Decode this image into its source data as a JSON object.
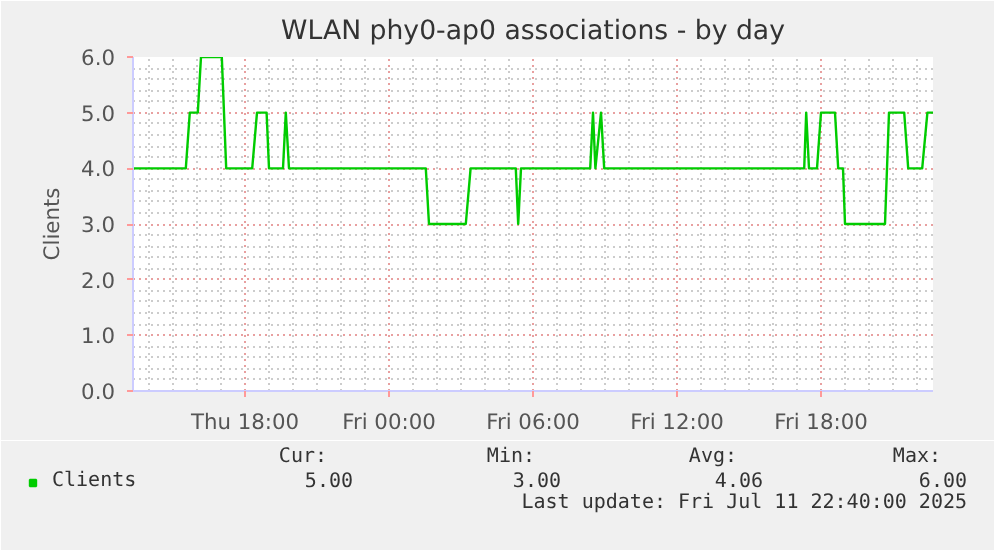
{
  "chart_data": {
    "type": "line",
    "title": "WLAN phy0-ap0 associations - by day",
    "ylabel": "Clients",
    "x": [
      "2025-07-10T13:20",
      "2025-07-10T15:32",
      "2025-07-10T15:42",
      "2025-07-10T16:02",
      "2025-07-10T16:10",
      "2025-07-10T17:02",
      "2025-07-10T17:13",
      "2025-07-10T18:18",
      "2025-07-10T18:30",
      "2025-07-10T18:54",
      "2025-07-10T19:00",
      "2025-07-10T19:35",
      "2025-07-10T19:42",
      "2025-07-10T19:50",
      "2025-07-11T01:32",
      "2025-07-11T01:40",
      "2025-07-11T03:12",
      "2025-07-11T03:24",
      "2025-07-11T05:17",
      "2025-07-11T05:23",
      "2025-07-11T05:30",
      "2025-07-11T08:23",
      "2025-07-11T08:30",
      "2025-07-11T08:36",
      "2025-07-11T08:50",
      "2025-07-11T08:58",
      "2025-07-11T17:18",
      "2025-07-11T17:23",
      "2025-07-11T17:30",
      "2025-07-11T17:50",
      "2025-07-11T18:00",
      "2025-07-11T18:35",
      "2025-07-11T18:43",
      "2025-07-11T18:55",
      "2025-07-11T19:00",
      "2025-07-11T20:40",
      "2025-07-11T20:50",
      "2025-07-11T21:28",
      "2025-07-11T21:38",
      "2025-07-11T22:13",
      "2025-07-11T22:26",
      "2025-07-11T22:40"
    ],
    "series": [
      {
        "name": "Clients",
        "color": "#00cc00",
        "values": [
          4,
          4,
          5,
          5,
          6,
          6,
          4,
          4,
          5,
          5,
          4,
          4,
          5,
          4,
          4,
          3,
          3,
          4,
          4,
          3,
          4,
          4,
          5,
          4,
          5,
          4,
          4,
          5,
          4,
          4,
          5,
          5,
          4,
          4,
          3,
          3,
          5,
          5,
          4,
          4,
          5,
          5
        ]
      }
    ],
    "xlim": [
      "2025-07-10T13:20",
      "2025-07-11T22:40"
    ],
    "xticks": [
      {
        "value": "2025-07-10T18:00",
        "label": "Thu 18:00"
      },
      {
        "value": "2025-07-11T00:00",
        "label": "Fri 00:00"
      },
      {
        "value": "2025-07-11T06:00",
        "label": "Fri 06:00"
      },
      {
        "value": "2025-07-11T12:00",
        "label": "Fri 12:00"
      },
      {
        "value": "2025-07-11T18:00",
        "label": "Fri 18:00"
      }
    ],
    "ylim": [
      0,
      6
    ],
    "yticks": [
      {
        "value": 0,
        "label": "0.0"
      },
      {
        "value": 1,
        "label": "1.0"
      },
      {
        "value": 2,
        "label": "2.0"
      },
      {
        "value": 3,
        "label": "3.0"
      },
      {
        "value": 4,
        "label": "4.0"
      },
      {
        "value": 5,
        "label": "5.0"
      },
      {
        "value": 6,
        "label": "6.0"
      }
    ],
    "grid": true,
    "legend": "bottom",
    "marker": "none",
    "line_style": "solid",
    "annotations": [
      "Cur:",
      "5.00",
      "Min:",
      "3.00",
      "Avg:",
      "4.06",
      "Max:",
      "6.00",
      "Last update: Fri Jul 11 22:40:00 2025"
    ]
  }
}
